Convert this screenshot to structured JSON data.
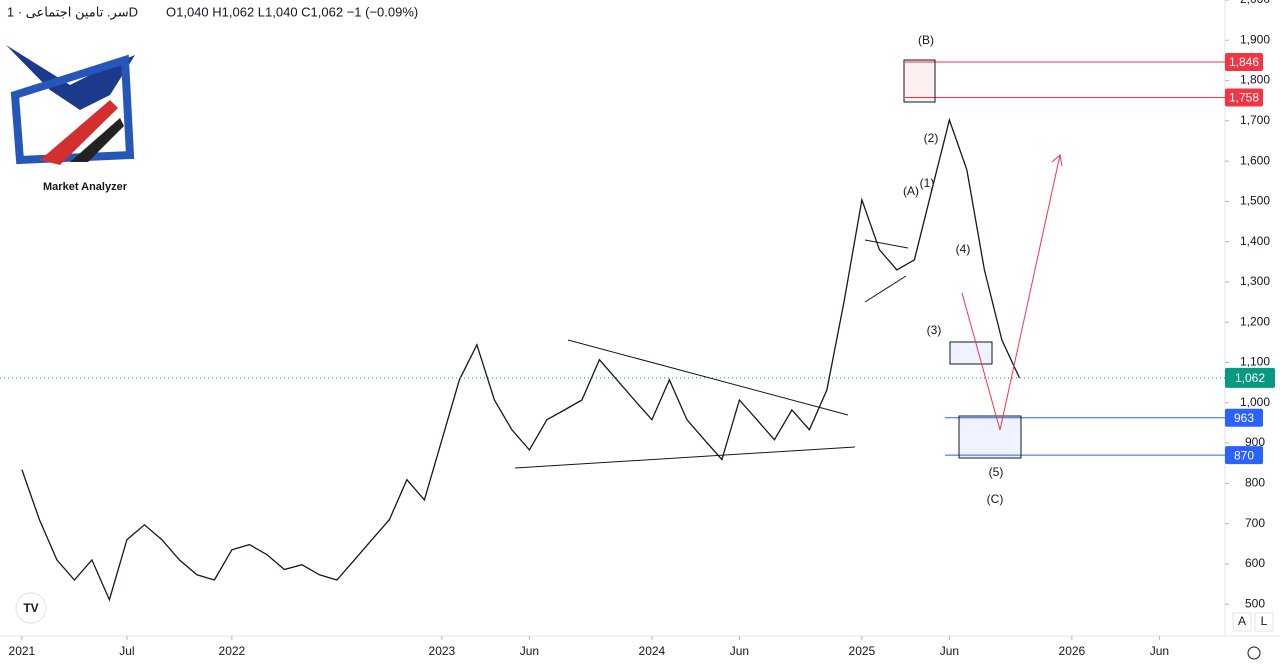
{
  "chart_data": {
    "type": "line",
    "symbol": "سر. تامین اجتماعی · 1D",
    "ohlc": "O1,040 H1,062 L1,040 C1,062 −1 (−0.09%)",
    "logo_text": "Market Analyzer",
    "buttons": [
      "A",
      "L"
    ],
    "annotations": [
      "(B)",
      "(2)",
      "(A)",
      "(1)",
      "(4)",
      "(3)",
      "(5)",
      "(C)"
    ],
    "x": [
      0,
      1,
      2,
      3,
      4,
      5,
      6,
      7,
      8,
      9,
      10,
      11,
      12,
      13,
      14,
      15,
      16,
      17,
      18,
      19,
      20,
      21,
      22,
      23,
      24,
      25,
      26,
      27,
      28,
      29,
      30,
      31,
      32,
      33,
      34,
      35,
      36,
      37,
      38,
      39,
      40,
      41,
      42,
      43,
      44,
      45,
      46,
      47,
      48,
      49,
      50,
      51,
      52,
      53,
      54,
      55,
      56,
      57
    ],
    "series": [
      {
        "name": "سر. تامین اجتماعی",
        "color": "#131722",
        "values": [
          834,
          710,
          610,
          560,
          610,
          511,
          660,
          697,
          660,
          610,
          573,
          560,
          635,
          648,
          623,
          586,
          598,
          573,
          560,
          610,
          660,
          710,
          809,
          759,
          908,
          1057,
          1144,
          1007,
          933,
          883,
          958,
          982,
          1007,
          1107,
          1057,
          1007,
          958,
          1057,
          958,
          908,
          859,
          1007,
          958,
          908,
          982,
          933,
          1032,
          1256,
          1504,
          1380,
          1330,
          1355,
          1529,
          1702,
          1578,
          1330,
          1156,
          1062
        ]
      }
    ],
    "xlim": [
      -1.25,
      68.75
    ],
    "xticks": [
      {
        "value": 0,
        "label": "2021"
      },
      {
        "value": 6,
        "label": "Jul"
      },
      {
        "value": 12,
        "label": "2022"
      },
      {
        "value": 24,
        "label": "2023"
      },
      {
        "value": 29,
        "label": "Jun"
      },
      {
        "value": 36,
        "label": "2024"
      },
      {
        "value": 41,
        "label": "Jun"
      },
      {
        "value": 48,
        "label": "2025"
      },
      {
        "value": 53,
        "label": "Jun"
      },
      {
        "value": 60,
        "label": "2026"
      },
      {
        "value": 65,
        "label": "Jun"
      }
    ],
    "ylim": [
      421,
      2000
    ],
    "yticks": [
      500,
      600,
      700,
      800,
      900,
      {
        "value": 1000,
        "label": "1,000"
      },
      {
        "value": 1100,
        "label": "1,100"
      },
      {
        "value": 1200,
        "label": "1,200"
      },
      {
        "value": 1300,
        "label": "1,300"
      },
      {
        "value": 1400,
        "label": "1,400"
      },
      {
        "value": 1500,
        "label": "1,500"
      },
      {
        "value": 1600,
        "label": "1,600"
      },
      {
        "value": 1700,
        "label": "1,700"
      },
      {
        "value": 1800,
        "label": "1,800"
      },
      {
        "value": 1900,
        "label": "1,900"
      },
      {
        "value": 2000,
        "label": "2,000"
      }
    ],
    "levels": [
      {
        "value": 1846,
        "label": "1,846",
        "color": "#f23645"
      },
      {
        "value": 1758,
        "label": "1,758",
        "color": "#f23645"
      },
      {
        "value": 963,
        "label": "963",
        "color": "#2962ff"
      },
      {
        "value": 870,
        "label": "870",
        "color": "#2962ff"
      }
    ],
    "last_price": {
      "value": 1062,
      "label": "1,062",
      "color": "#089981"
    }
  }
}
